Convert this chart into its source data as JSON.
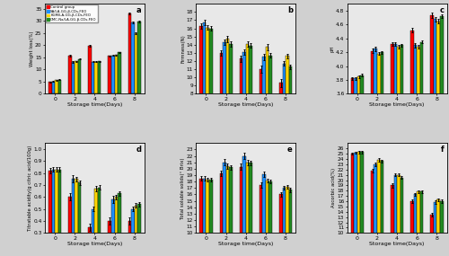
{
  "colors": [
    "#FF0000",
    "#1E90FF",
    "#FFD700",
    "#228B22"
  ],
  "legend_labels": [
    "Control group",
    "SA/LA-GG-β-CDs-FEO",
    "KGM/LA-GG-β-CDs-FEO",
    "CMC-Na/LA-GG-β-CDs-FEO"
  ],
  "days": [
    0,
    2,
    4,
    6,
    8
  ],
  "bar_width": 0.32,
  "bg_color": "#E8E8E8",
  "a_title": "a",
  "a_ylabel": "Weight loss(%)",
  "a_xlabel": "Storage time(Days)",
  "a_ylim": [
    0,
    37
  ],
  "a_yticks": [
    0,
    5,
    10,
    15,
    20,
    25,
    30,
    35
  ],
  "a_data": [
    [
      4.8,
      15.6,
      19.7,
      15.5,
      33.0
    ],
    [
      5.1,
      13.0,
      13.2,
      15.8,
      29.2
    ],
    [
      5.5,
      13.3,
      13.1,
      15.9,
      25.0
    ],
    [
      5.7,
      14.3,
      13.4,
      17.0,
      29.8
    ]
  ],
  "a_err": [
    [
      0.2,
      0.3,
      0.3,
      0.2,
      0.5
    ],
    [
      0.2,
      0.3,
      0.2,
      0.3,
      0.4
    ],
    [
      0.2,
      0.2,
      0.2,
      0.2,
      0.4
    ],
    [
      0.2,
      0.3,
      0.2,
      0.3,
      0.4
    ]
  ],
  "b_title": "b",
  "b_ylabel": "Firmness(N)",
  "b_xlabel": "Storage time(Days)",
  "b_ylim": [
    8,
    19
  ],
  "b_yticks": [
    8,
    9,
    10,
    11,
    12,
    13,
    14,
    15,
    16,
    17,
    18
  ],
  "b_data": [
    [
      16.3,
      13.0,
      12.3,
      11.0,
      9.3
    ],
    [
      16.7,
      14.3,
      13.1,
      12.5,
      11.7
    ],
    [
      16.1,
      14.7,
      14.1,
      13.7,
      12.6
    ],
    [
      16.0,
      14.1,
      13.9,
      12.7,
      11.3
    ]
  ],
  "b_err": [
    [
      0.3,
      0.3,
      0.4,
      0.4,
      0.5
    ],
    [
      0.3,
      0.3,
      0.3,
      0.4,
      0.3
    ],
    [
      0.3,
      0.4,
      0.3,
      0.4,
      0.3
    ],
    [
      0.3,
      0.3,
      0.3,
      0.3,
      0.3
    ]
  ],
  "c_title": "c",
  "c_ylabel": "pH",
  "c_xlabel": "Storage time(Days)",
  "c_ylim": [
    3.6,
    4.9
  ],
  "c_yticks": [
    3.6,
    3.8,
    4.0,
    4.2,
    4.4,
    4.6,
    4.8
  ],
  "c_data": [
    [
      3.82,
      4.22,
      4.32,
      4.52,
      4.73
    ],
    [
      3.82,
      4.25,
      4.32,
      4.3,
      4.68
    ],
    [
      3.85,
      4.18,
      4.28,
      4.28,
      4.65
    ],
    [
      3.87,
      4.2,
      4.3,
      4.35,
      4.72
    ]
  ],
  "c_err": [
    [
      0.02,
      0.03,
      0.03,
      0.03,
      0.04
    ],
    [
      0.02,
      0.03,
      0.03,
      0.03,
      0.03
    ],
    [
      0.02,
      0.02,
      0.02,
      0.03,
      0.03
    ],
    [
      0.02,
      0.02,
      0.02,
      0.02,
      0.03
    ]
  ],
  "d_title": "d",
  "d_ylabel": "Titratable acidity(g citric acid/100g)",
  "d_xlabel": "Storage time(Days)",
  "d_ylim": [
    0.3,
    1.05
  ],
  "d_yticks": [
    0.3,
    0.4,
    0.5,
    0.6,
    0.7,
    0.8,
    0.9,
    1.0
  ],
  "d_data": [
    [
      0.82,
      0.6,
      0.35,
      0.4,
      0.4
    ],
    [
      0.83,
      0.75,
      0.5,
      0.58,
      0.5
    ],
    [
      0.83,
      0.75,
      0.67,
      0.6,
      0.53
    ],
    [
      0.83,
      0.72,
      0.68,
      0.63,
      0.54
    ]
  ],
  "d_err": [
    [
      0.02,
      0.03,
      0.03,
      0.03,
      0.03
    ],
    [
      0.02,
      0.03,
      0.02,
      0.03,
      0.02
    ],
    [
      0.02,
      0.02,
      0.02,
      0.02,
      0.02
    ],
    [
      0.02,
      0.02,
      0.02,
      0.02,
      0.02
    ]
  ],
  "e_title": "e",
  "e_ylabel": "Total soluble solids(° Brix)",
  "e_xlabel": "Storage time(Days)",
  "e_ylim": [
    10,
    24
  ],
  "e_yticks": [
    10,
    11,
    12,
    13,
    14,
    15,
    16,
    17,
    18,
    19,
    20,
    21,
    22,
    23
  ],
  "e_data": [
    [
      18.5,
      19.3,
      20.3,
      17.5,
      16.0
    ],
    [
      18.5,
      21.0,
      22.0,
      19.1,
      17.0
    ],
    [
      18.3,
      20.4,
      21.0,
      18.2,
      17.2
    ],
    [
      18.3,
      20.2,
      20.9,
      18.0,
      16.7
    ]
  ],
  "e_err": [
    [
      0.3,
      0.4,
      0.5,
      0.4,
      0.3
    ],
    [
      0.3,
      0.5,
      0.5,
      0.4,
      0.3
    ],
    [
      0.3,
      0.4,
      0.4,
      0.3,
      0.3
    ],
    [
      0.3,
      0.3,
      0.4,
      0.3,
      0.3
    ]
  ],
  "f_title": "f",
  "f_ylabel": "Ascorbic acid(%)",
  "f_xlabel": "Storage time(Days)",
  "f_ylim": [
    10,
    27
  ],
  "f_yticks": [
    10,
    11,
    12,
    13,
    14,
    15,
    16,
    17,
    18,
    19,
    20,
    21,
    22,
    23,
    24,
    25,
    26
  ],
  "f_data": [
    [
      25.0,
      21.8,
      19.0,
      16.0,
      13.5
    ],
    [
      25.2,
      23.0,
      21.0,
      17.3,
      15.8
    ],
    [
      25.3,
      23.8,
      21.0,
      17.8,
      16.3
    ],
    [
      25.3,
      23.6,
      20.5,
      17.8,
      16.0
    ]
  ],
  "f_err": [
    [
      0.2,
      0.4,
      0.4,
      0.3,
      0.3
    ],
    [
      0.2,
      0.3,
      0.3,
      0.3,
      0.3
    ],
    [
      0.2,
      0.3,
      0.3,
      0.3,
      0.3
    ],
    [
      0.2,
      0.3,
      0.3,
      0.3,
      0.3
    ]
  ]
}
